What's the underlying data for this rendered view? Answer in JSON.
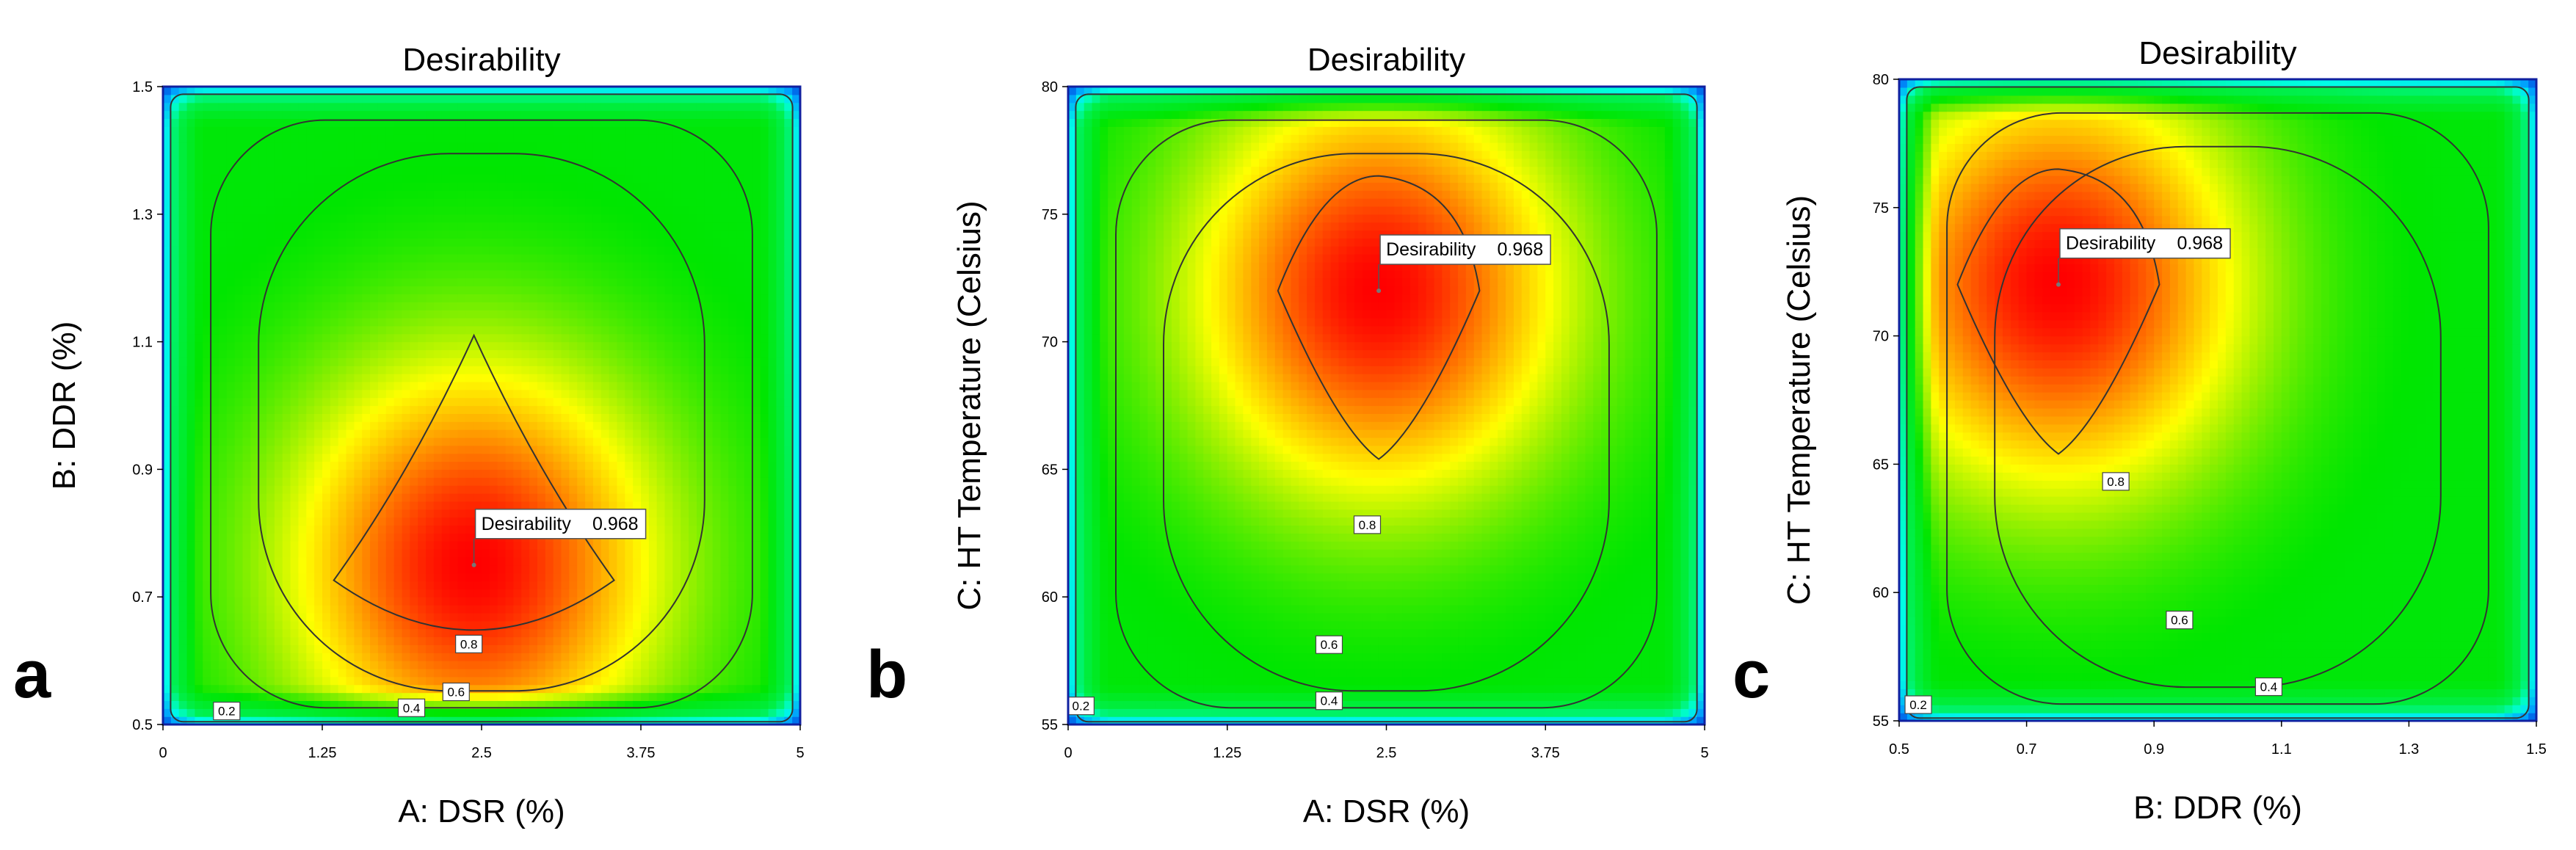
{
  "chart_data": [
    {
      "type": "heatmap",
      "panel_label": "a",
      "title": "Desirability",
      "xlabel": "A: DSR (%)",
      "ylabel": "B: DDR (%)",
      "xlim": [
        0,
        5
      ],
      "ylim": [
        0.5,
        1.5
      ],
      "xticks": [
        0,
        1.25,
        2.5,
        3.75,
        5
      ],
      "xtick_labels": [
        "0",
        "1.25",
        "2.5",
        "3.75",
        "5"
      ],
      "yticks": [
        0.5,
        0.7,
        0.9,
        1.1,
        1.3,
        1.5
      ],
      "ytick_labels": [
        "0.5",
        "0.7",
        "0.9",
        "1.1",
        "1.3",
        "1.5"
      ],
      "optimum": {
        "x": 2.44,
        "y": 0.75,
        "label": "Desirability",
        "value": "0.968"
      },
      "contours": [
        {
          "level": 0.2,
          "label": "0.2",
          "label_at": [
            0.5,
            0.52
          ]
        },
        {
          "level": 0.4,
          "label": "0.4",
          "label_at": [
            1.95,
            0.525
          ]
        },
        {
          "level": 0.6,
          "label": "0.6",
          "label_at": [
            2.3,
            0.55
          ]
        },
        {
          "level": 0.8,
          "label": "0.8",
          "label_at": [
            2.4,
            0.625
          ]
        }
      ]
    },
    {
      "type": "heatmap",
      "panel_label": "b",
      "title": "Desirability",
      "xlabel": "A: DSR (%)",
      "ylabel": "C: HT Temperature (Celsius)",
      "xlim": [
        0,
        5
      ],
      "ylim": [
        55,
        80
      ],
      "xticks": [
        0,
        1.25,
        2.5,
        3.75,
        5
      ],
      "xtick_labels": [
        "0",
        "1.25",
        "2.5",
        "3.75",
        "5"
      ],
      "yticks": [
        55,
        60,
        65,
        70,
        75,
        80
      ],
      "ytick_labels": [
        "55",
        "60",
        "65",
        "70",
        "75",
        "80"
      ],
      "optimum": {
        "x": 2.44,
        "y": 72,
        "label": "Desirability",
        "value": "0.968"
      },
      "contours": [
        {
          "level": 0.2,
          "label": "0.2",
          "label_at": [
            0.1,
            55.7
          ]
        },
        {
          "level": 0.4,
          "label": "0.4",
          "label_at": [
            2.05,
            55.9
          ]
        },
        {
          "level": 0.6,
          "label": "0.6",
          "label_at": [
            2.05,
            58.1
          ]
        },
        {
          "level": 0.8,
          "label": "0.8",
          "label_at": [
            2.35,
            62.8
          ]
        }
      ]
    },
    {
      "type": "heatmap",
      "panel_label": "c",
      "title": "Desirability",
      "xlabel": "B: DDR (%)",
      "ylabel": "C: HT Temperature (Celsius)",
      "xlim": [
        0.5,
        1.5
      ],
      "ylim": [
        55,
        80
      ],
      "xticks": [
        0.5,
        0.7,
        0.9,
        1.1,
        1.3,
        1.5
      ],
      "xtick_labels": [
        "0.5",
        "0.7",
        "0.9",
        "1.1",
        "1.3",
        "1.5"
      ],
      "yticks": [
        55,
        60,
        65,
        70,
        75,
        80
      ],
      "ytick_labels": [
        "55",
        "60",
        "65",
        "70",
        "75",
        "80"
      ],
      "optimum": {
        "x": 0.75,
        "y": 72,
        "label": "Desirability",
        "value": "0.968"
      },
      "contours": [
        {
          "level": 0.2,
          "label": "0.2",
          "label_at": [
            0.53,
            55.6
          ]
        },
        {
          "level": 0.4,
          "label": "0.4",
          "label_at": [
            1.08,
            56.3
          ]
        },
        {
          "level": 0.6,
          "label": "0.6",
          "label_at": [
            0.94,
            58.9
          ]
        },
        {
          "level": 0.8,
          "label": "0.8",
          "label_at": [
            0.84,
            64.3
          ]
        }
      ]
    }
  ]
}
